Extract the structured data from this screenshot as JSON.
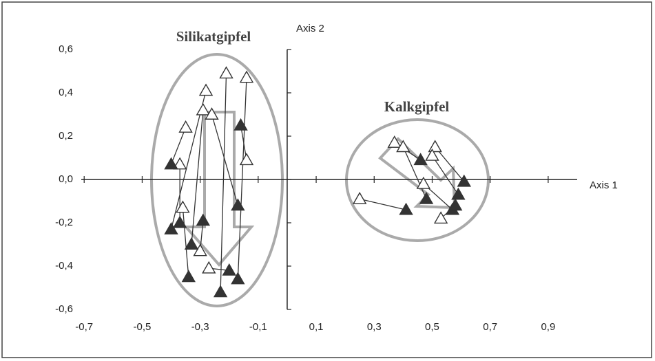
{
  "chart_data": {
    "type": "scatter",
    "x_label": "Axis 1",
    "y_label": "Axis 2",
    "annotations": [
      "Silikatgipfel",
      "Kalkgipfel"
    ],
    "xlim": [
      -0.71,
      1.0
    ],
    "ylim": [
      -0.6,
      0.6
    ],
    "xticks": [
      {
        "value": -0.7,
        "label": "-0,7"
      },
      {
        "value": -0.5,
        "label": "-0,5"
      },
      {
        "value": -0.3,
        "label": "-0,3"
      },
      {
        "value": -0.1,
        "label": "-0,1"
      },
      {
        "value": 0.1,
        "label": "0,1"
      },
      {
        "value": 0.3,
        "label": "0,3"
      },
      {
        "value": 0.5,
        "label": "0,5"
      },
      {
        "value": 0.7,
        "label": "0,7"
      },
      {
        "value": 0.9,
        "label": "0,9"
      }
    ],
    "yticks": [
      {
        "value": -0.6,
        "label": "-0,6"
      },
      {
        "value": -0.4,
        "label": "-0,4"
      },
      {
        "value": -0.2,
        "label": "-0,2"
      },
      {
        "value": 0,
        "label": "0,0"
      },
      {
        "value": 0.2,
        "label": "0,2"
      },
      {
        "value": 0.4,
        "label": "0,4"
      },
      {
        "value": 0.6,
        "label": "0,6"
      }
    ],
    "series": [
      {
        "marker": "open",
        "color": "#ffffff",
        "x": [
          -0.28,
          -0.29,
          -0.35,
          -0.37,
          -0.26,
          -0.21,
          -0.14,
          -0.14,
          -0.36,
          -0.3,
          -0.27,
          0.25,
          0.37,
          0.4,
          0.51,
          0.5,
          0.47,
          0.53
        ],
        "y": [
          0.41,
          0.32,
          0.24,
          0.07,
          0.3,
          0.49,
          0.47,
          0.09,
          -0.13,
          -0.33,
          -0.41,
          -0.09,
          0.17,
          0.15,
          0.15,
          0.11,
          -0.02,
          -0.18
        ]
      },
      {
        "marker": "filled",
        "color": "#333333",
        "x": [
          -0.4,
          -0.33,
          -0.4,
          -0.37,
          -0.17,
          -0.23,
          -0.17,
          -0.16,
          -0.34,
          -0.29,
          -0.2,
          0.41,
          0.46,
          0.48,
          0.61,
          0.59,
          0.57,
          0.58
        ],
        "y": [
          -0.23,
          -0.3,
          0.07,
          -0.2,
          -0.12,
          -0.52,
          -0.46,
          0.25,
          -0.45,
          -0.19,
          -0.42,
          -0.14,
          0.09,
          -0.09,
          -0.01,
          -0.07,
          -0.14,
          -0.12
        ]
      }
    ]
  }
}
